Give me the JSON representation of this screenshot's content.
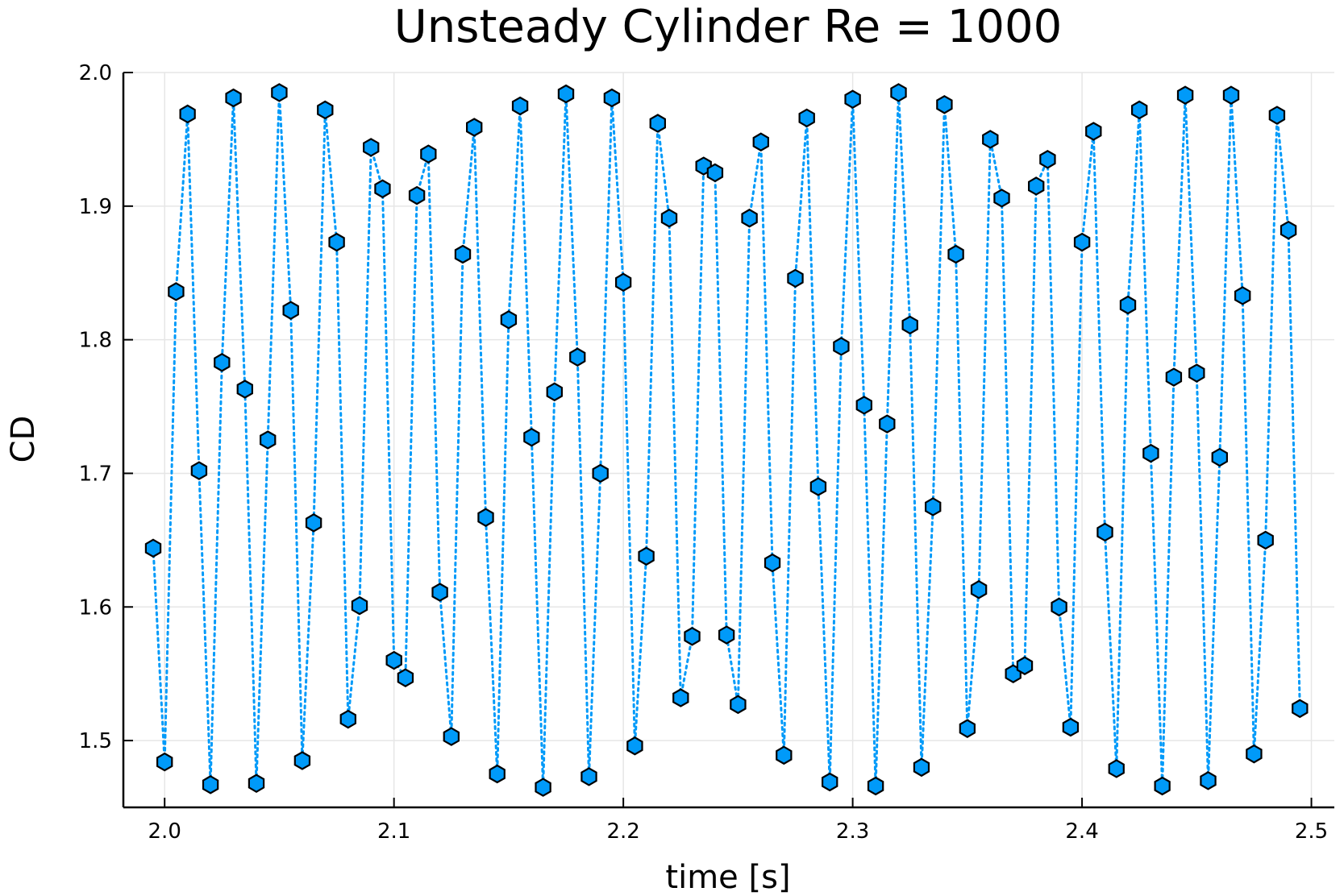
{
  "chart_data": {
    "type": "scatter",
    "title": "Unsteady Cylinder Re = 1000",
    "xlabel": "time [s]",
    "ylabel": "CD",
    "xlim": [
      1.982,
      2.51
    ],
    "ylim": [
      1.45,
      2.0
    ],
    "xticks": [
      "2.0",
      "2.1",
      "2.2",
      "2.3",
      "2.4",
      "2.5"
    ],
    "xtick_values": [
      2.0,
      2.1,
      2.2,
      2.3,
      2.4,
      2.5
    ],
    "yticks": [
      "1.5",
      "1.6",
      "1.7",
      "1.8",
      "1.9",
      "2.0"
    ],
    "ytick_values": [
      1.5,
      1.6,
      1.7,
      1.8,
      1.9,
      2.0
    ],
    "grid": true,
    "legend": "none",
    "line_style": "dotted",
    "marker": "hexagon",
    "colors": {
      "series": "#009af9",
      "marker_stroke": "#000000",
      "grid": "#e6e6e6"
    },
    "series": [
      {
        "x": [
          1.995,
          2.0,
          2.005,
          2.01,
          2.015,
          2.02,
          2.025,
          2.03,
          2.035,
          2.04,
          2.045,
          2.05,
          2.055,
          2.06,
          2.065,
          2.07,
          2.075,
          2.08,
          2.085,
          2.09,
          2.095,
          2.1,
          2.105,
          2.11,
          2.115,
          2.12,
          2.125,
          2.13,
          2.135,
          2.14,
          2.145,
          2.15,
          2.155,
          2.16,
          2.165,
          2.17,
          2.175,
          2.18,
          2.185,
          2.19,
          2.195,
          2.2,
          2.205,
          2.21,
          2.215,
          2.22,
          2.225,
          2.23,
          2.235,
          2.24,
          2.245,
          2.25,
          2.255,
          2.26,
          2.265,
          2.27,
          2.275,
          2.28,
          2.285,
          2.29,
          2.295,
          2.3,
          2.305,
          2.31,
          2.315,
          2.32,
          2.325,
          2.33,
          2.335,
          2.34,
          2.345,
          2.35,
          2.355,
          2.36,
          2.365,
          2.37,
          2.375,
          2.38,
          2.385,
          2.39,
          2.395,
          2.4,
          2.405,
          2.41,
          2.415,
          2.42,
          2.425,
          2.43,
          2.435,
          2.44,
          2.445,
          2.45,
          2.455,
          2.46,
          2.465,
          2.47,
          2.475,
          2.48,
          2.485,
          2.49,
          2.495
        ],
        "y": [
          1.644,
          1.484,
          1.836,
          1.969,
          1.702,
          1.467,
          1.783,
          1.981,
          1.763,
          1.468,
          1.725,
          1.985,
          1.822,
          1.485,
          1.663,
          1.972,
          1.873,
          1.516,
          1.601,
          1.944,
          1.913,
          1.56,
          1.547,
          1.908,
          1.939,
          1.611,
          1.503,
          1.864,
          1.959,
          1.667,
          1.475,
          1.815,
          1.975,
          1.727,
          1.465,
          1.761,
          1.984,
          1.787,
          1.473,
          1.7,
          1.981,
          1.843,
          1.496,
          1.638,
          1.962,
          1.891,
          1.532,
          1.578,
          1.93,
          1.925,
          1.579,
          1.527,
          1.891,
          1.948,
          1.633,
          1.489,
          1.846,
          1.966,
          1.69,
          1.469,
          1.795,
          1.98,
          1.751,
          1.466,
          1.737,
          1.985,
          1.811,
          1.48,
          1.675,
          1.976,
          1.864,
          1.509,
          1.613,
          1.95,
          1.906,
          1.55,
          1.556,
          1.915,
          1.935,
          1.6,
          1.51,
          1.873,
          1.956,
          1.656,
          1.479,
          1.826,
          1.972,
          1.715,
          1.466,
          1.772,
          1.983,
          1.775,
          1.47,
          1.712,
          1.983,
          1.833,
          1.49,
          1.65,
          1.968,
          1.882,
          1.524
        ]
      }
    ]
  }
}
